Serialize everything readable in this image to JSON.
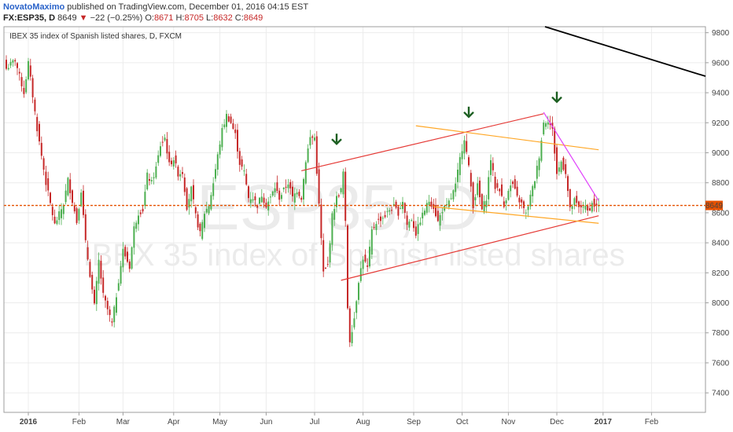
{
  "header": {
    "author": "NovatoMaximo",
    "published_text": " published on TradingView.com, December 01, 2016 04:15 EST",
    "symbol": "FX:ESP35, D",
    "last": "8649",
    "change_arrow": "▼",
    "change": "−22 (−0.25%)",
    "open_label": "O:",
    "open": "8671",
    "high_label": "H:",
    "high": "8705",
    "low_label": "L:",
    "low": "8632",
    "close_label": "C:",
    "close": "8649"
  },
  "colors": {
    "up": "#4caf50",
    "down": "#c62828",
    "price_line": "#e65100",
    "channel": "#e53935",
    "orange_lines": "#ffa726",
    "magenta_line": "#e040fb",
    "trend_black": "#000000",
    "arrows": "#1b5e20"
  },
  "chart_data": {
    "type": "candlestick",
    "title": "IBEX 35 index of Spanish listed shares, D, FXCM",
    "watermark_symbol": "ESP35, D",
    "watermark_name": "IBEX 35 index of Spanish listed shares",
    "y_ticks": [
      7400,
      7600,
      7800,
      8000,
      8200,
      8400,
      8600,
      8800,
      9000,
      9200,
      9400,
      9600,
      9800
    ],
    "ylim": [
      7270,
      9840
    ],
    "x_ticks": [
      "2016",
      "Feb",
      "Mar",
      "Apr",
      "May",
      "Jun",
      "Jul",
      "Aug",
      "Sep",
      "Oct",
      "Nov",
      "Dec",
      "2017",
      "Feb"
    ],
    "last_price": 8649,
    "close_anchors": [
      [
        0,
        9560
      ],
      [
        4,
        9620
      ],
      [
        8,
        9400
      ],
      [
        10,
        9600
      ],
      [
        14,
        9160
      ],
      [
        18,
        8800
      ],
      [
        22,
        8520
      ],
      [
        26,
        8660
      ],
      [
        28,
        8820
      ],
      [
        32,
        8540
      ],
      [
        34,
        8750
      ],
      [
        36,
        8400
      ],
      [
        40,
        7980
      ],
      [
        42,
        8280
      ],
      [
        44,
        8050
      ],
      [
        48,
        7860
      ],
      [
        50,
        8050
      ],
      [
        53,
        8350
      ],
      [
        56,
        8240
      ],
      [
        58,
        8500
      ],
      [
        60,
        8600
      ],
      [
        62,
        8620
      ],
      [
        64,
        8850
      ],
      [
        66,
        8800
      ],
      [
        68,
        8900
      ],
      [
        70,
        9050
      ],
      [
        72,
        9100
      ],
      [
        74,
        8920
      ],
      [
        76,
        8960
      ],
      [
        78,
        8860
      ],
      [
        80,
        8870
      ],
      [
        82,
        8640
      ],
      [
        84,
        8760
      ],
      [
        86,
        8580
      ],
      [
        88,
        8460
      ],
      [
        90,
        8600
      ],
      [
        92,
        8650
      ],
      [
        94,
        8800
      ],
      [
        96,
        8980
      ],
      [
        98,
        9150
      ],
      [
        100,
        9250
      ],
      [
        102,
        9200
      ],
      [
        104,
        9120
      ],
      [
        106,
        8930
      ],
      [
        108,
        8870
      ],
      [
        110,
        8700
      ],
      [
        112,
        8700
      ],
      [
        114,
        8650
      ],
      [
        116,
        8720
      ],
      [
        118,
        8650
      ],
      [
        120,
        8700
      ],
      [
        122,
        8770
      ],
      [
        124,
        8700
      ],
      [
        126,
        8750
      ],
      [
        128,
        8800
      ],
      [
        130,
        8700
      ],
      [
        132,
        8750
      ],
      [
        134,
        8700
      ],
      [
        136,
        8950
      ],
      [
        138,
        9100
      ],
      [
        140,
        9100
      ],
      [
        142,
        8650
      ],
      [
        144,
        8200
      ],
      [
        146,
        8250
      ],
      [
        148,
        8580
      ],
      [
        150,
        8700
      ],
      [
        152,
        8750
      ],
      [
        153,
        8870
      ],
      [
        154,
        8530
      ],
      [
        155,
        7970
      ],
      [
        156,
        7750
      ],
      [
        158,
        7900
      ],
      [
        160,
        8150
      ],
      [
        162,
        8300
      ],
      [
        164,
        8230
      ],
      [
        166,
        8480
      ],
      [
        168,
        8540
      ],
      [
        170,
        8560
      ],
      [
        172,
        8580
      ],
      [
        174,
        8620
      ],
      [
        176,
        8640
      ],
      [
        178,
        8600
      ],
      [
        180,
        8680
      ],
      [
        182,
        8520
      ],
      [
        184,
        8560
      ],
      [
        186,
        8460
      ],
      [
        188,
        8550
      ],
      [
        190,
        8620
      ],
      [
        192,
        8680
      ],
      [
        194,
        8640
      ],
      [
        196,
        8540
      ],
      [
        198,
        8620
      ],
      [
        200,
        8640
      ],
      [
        202,
        8700
      ],
      [
        204,
        8780
      ],
      [
        206,
        8960
      ],
      [
        208,
        9100
      ],
      [
        210,
        8900
      ],
      [
        212,
        8650
      ],
      [
        214,
        8780
      ],
      [
        216,
        8620
      ],
      [
        218,
        8700
      ],
      [
        220,
        8960
      ],
      [
        222,
        8770
      ],
      [
        224,
        8760
      ],
      [
        226,
        8640
      ],
      [
        228,
        8760
      ],
      [
        230,
        8790
      ],
      [
        232,
        8700
      ],
      [
        234,
        8660
      ],
      [
        236,
        8590
      ],
      [
        238,
        8710
      ],
      [
        240,
        8820
      ],
      [
        242,
        8980
      ],
      [
        244,
        9200
      ],
      [
        246,
        9220
      ],
      [
        248,
        9150
      ],
      [
        250,
        8860
      ],
      [
        252,
        8940
      ],
      [
        254,
        8870
      ],
      [
        256,
        8620
      ],
      [
        258,
        8680
      ],
      [
        260,
        8630
      ],
      [
        262,
        8650
      ],
      [
        264,
        8610
      ],
      [
        266,
        8660
      ],
      [
        268,
        8640
      ],
      [
        269,
        8649
      ]
    ],
    "annotations": [
      {
        "type": "arrow_down",
        "label": "peak",
        "at": [
          150,
          9080
        ]
      },
      {
        "type": "arrow_down",
        "label": "peak",
        "at": [
          210,
          9260
        ]
      },
      {
        "type": "arrow_down",
        "label": "peak",
        "at": [
          250,
          9360
        ]
      }
    ]
  }
}
